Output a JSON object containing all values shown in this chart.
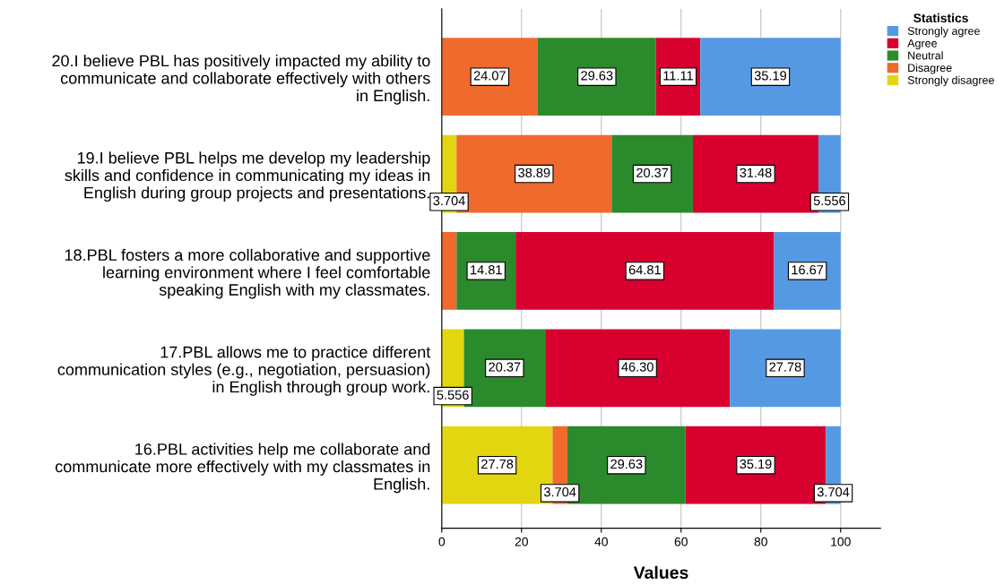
{
  "chart_data": {
    "type": "bar",
    "orientation": "horizontal",
    "stacked": true,
    "categories": [
      "20.I believe PBL has positively impacted my ability to\ncommunicate and collaborate effectively with others\nin English.",
      "19.I believe PBL helps me develop my leadership\nskills and confidence in communicating my ideas in\nEnglish during group projects and presentations.",
      "18.PBL fosters a more collaborative and supportive\nlearning environment where I feel comfortable\nspeaking English with my classmates.",
      "17.PBL allows me to practice different\ncommunication styles (e.g., negotiation, persuasion)\nin English through group work.",
      "16.PBL activities help me collaborate and\ncommunicate more effectively with my classmates in\nEnglish."
    ],
    "series": [
      {
        "name": "Strongly disagree",
        "color": "#e2d611",
        "values": [
          null,
          3.704,
          null,
          5.556,
          27.78
        ],
        "value_labels": [
          null,
          "3.704",
          null,
          "5.556",
          "27.78"
        ]
      },
      {
        "name": "Disagree",
        "color": "#f0692d",
        "values": [
          24.07,
          38.89,
          3.704,
          null,
          3.704
        ],
        "value_labels": [
          "24.07",
          "38.89",
          null,
          null,
          "3.704"
        ]
      },
      {
        "name": "Neutral",
        "color": "#2b8a2b",
        "values": [
          29.63,
          20.37,
          14.81,
          20.37,
          29.63
        ],
        "value_labels": [
          "29.63",
          "20.37",
          "14.81",
          "20.37",
          "29.63"
        ]
      },
      {
        "name": "Agree",
        "color": "#d7002f",
        "values": [
          11.11,
          31.48,
          64.81,
          46.3,
          35.19
        ],
        "value_labels": [
          "11.11",
          "31.48",
          "64.81",
          "46.30",
          "35.19"
        ]
      },
      {
        "name": "Strongly agree",
        "color": "#5599e3",
        "values": [
          35.19,
          5.556,
          16.67,
          27.78,
          3.704
        ],
        "value_labels": [
          "35.19",
          "5.556",
          "16.67",
          "27.78",
          "3.704"
        ]
      }
    ],
    "xlim": [
      0,
      110
    ],
    "xticks": [
      0,
      20,
      40,
      60,
      80,
      100
    ],
    "xlabel": "Values",
    "grid": "x",
    "legend": "top right",
    "legend_title": "Statistics"
  }
}
